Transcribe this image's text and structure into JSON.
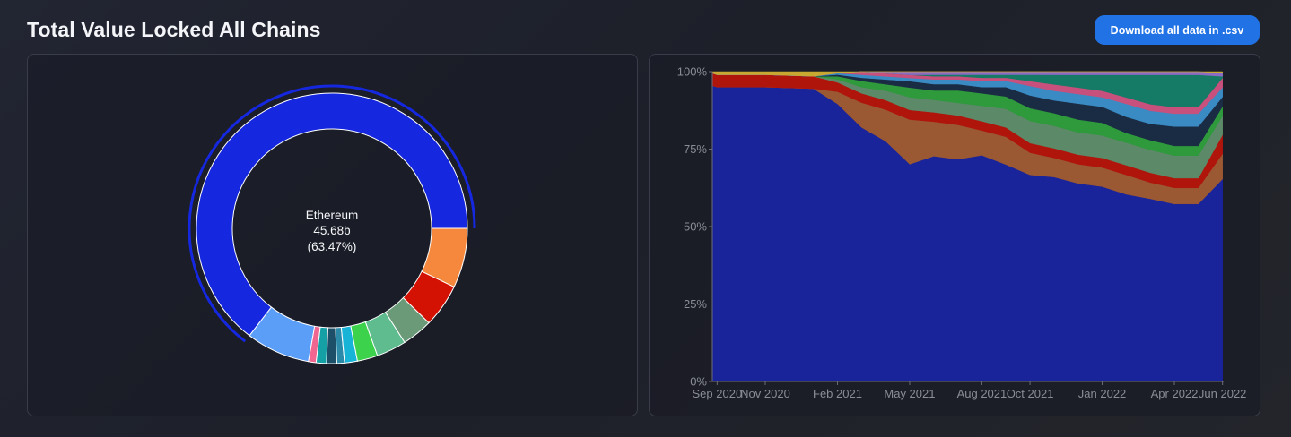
{
  "page": {
    "title": "Total Value Locked All Chains",
    "download_label": "Download all data in .csv"
  },
  "chart_data": [
    {
      "type": "pie",
      "style": "donut",
      "highlighted": {
        "name": "Ethereum",
        "value_label": "45.68b",
        "percent_label": "(63.47%)"
      },
      "slices": [
        {
          "name": "Ethereum",
          "percent": 63.47,
          "color": "#1528e0"
        },
        {
          "name": "",
          "percent": 7.5,
          "color": "#5a9ef8"
        },
        {
          "name": "",
          "percent": 0.9,
          "color": "#f06690"
        },
        {
          "name": "",
          "percent": 1.2,
          "color": "#15a0a6"
        },
        {
          "name": "",
          "percent": 1.2,
          "color": "#1d4f68"
        },
        {
          "name": "",
          "percent": 0.9,
          "color": "#2a8aa8"
        },
        {
          "name": "",
          "percent": 1.5,
          "color": "#18b4d8"
        },
        {
          "name": "",
          "percent": 2.4,
          "color": "#3cd24b"
        },
        {
          "name": "",
          "percent": 3.5,
          "color": "#5fbc8f"
        },
        {
          "name": "",
          "percent": 3.6,
          "color": "#6b9a78"
        },
        {
          "name": "",
          "percent": 5.1,
          "color": "#d31204"
        },
        {
          "name": "",
          "percent": 7.0,
          "color": "#f5883c"
        }
      ]
    },
    {
      "type": "area",
      "stacked": "percent",
      "x_labels": [
        "Sep 2020",
        "Nov 2020",
        "Feb 2021",
        "May 2021",
        "Aug 2021",
        "Oct 2021",
        "Jan 2022",
        "Apr 2022",
        "Jun 2022"
      ],
      "y_ticks": [
        "0%",
        "25%",
        "50%",
        "75%",
        "100%"
      ],
      "ylim": [
        0,
        100
      ],
      "grid": false,
      "series": [
        {
          "color": "#19239a",
          "points": [
            [
              "Aug 2020",
              95.5
            ],
            [
              "Sep 2020",
              95
            ],
            [
              "Nov 2020",
              95
            ],
            [
              "Jan 2021",
              94.5
            ],
            [
              "Feb 2021",
              90
            ],
            [
              "Mar 2021",
              82
            ],
            [
              "Apr 2021",
              76
            ],
            [
              "May 2021",
              68
            ],
            [
              "Jun 2021",
              72
            ],
            [
              "Jul 2021",
              71
            ],
            [
              "Aug 2021",
              73
            ],
            [
              "Sep 2021",
              70
            ],
            [
              "Oct 2021",
              65
            ],
            [
              "Nov 2021",
              64
            ],
            [
              "Dec 2021",
              62
            ],
            [
              "Jan 2022",
              61
            ],
            [
              "Feb 2022",
              58
            ],
            [
              "Mar 2022",
              56
            ],
            [
              "Apr 2022",
              55
            ],
            [
              "May 2022",
              55
            ],
            [
              "Jun 2022",
              64
            ]
          ]
        },
        {
          "color": "#9a5833",
          "points": [
            [
              "Aug 2020",
              0
            ],
            [
              "Sep 2020",
              0
            ],
            [
              "Nov 2020",
              0
            ],
            [
              "Jan 2021",
              0
            ],
            [
              "Feb 2021",
              4
            ],
            [
              "Mar 2021",
              8
            ],
            [
              "Apr 2021",
              10
            ],
            [
              "May 2021",
              14
            ],
            [
              "Jun 2021",
              11
            ],
            [
              "Jul 2021",
              11
            ],
            [
              "Aug 2021",
              8
            ],
            [
              "Sep 2021",
              9
            ],
            [
              "Oct 2021",
              7
            ],
            [
              "Nov 2021",
              6
            ],
            [
              "Dec 2021",
              6
            ],
            [
              "Jan 2022",
              6
            ],
            [
              "Feb 2022",
              6
            ],
            [
              "Mar 2022",
              5
            ],
            [
              "Apr 2022",
              5
            ],
            [
              "May 2022",
              5
            ],
            [
              "Jun 2022",
              8
            ]
          ]
        },
        {
          "color": "#b0150c",
          "points": [
            [
              "Aug 2020",
              4
            ],
            [
              "Sep 2020",
              4
            ],
            [
              "Nov 2020",
              4
            ],
            [
              "Jan 2021",
              4
            ],
            [
              "Feb 2021",
              3
            ],
            [
              "Mar 2021",
              3
            ],
            [
              "Apr 2021",
              3
            ],
            [
              "May 2021",
              3
            ],
            [
              "Jun 2021",
              3
            ],
            [
              "Jul 2021",
              3
            ],
            [
              "Aug 2021",
              3
            ],
            [
              "Sep 2021",
              3
            ],
            [
              "Oct 2021",
              3
            ],
            [
              "Nov 2021",
              3
            ],
            [
              "Dec 2021",
              3
            ],
            [
              "Jan 2022",
              3
            ],
            [
              "Feb 2022",
              3
            ],
            [
              "Mar 2022",
              3
            ],
            [
              "Apr 2022",
              3
            ],
            [
              "May 2022",
              3
            ],
            [
              "Jun 2022",
              6
            ]
          ]
        },
        {
          "color": "#5c8a68",
          "points": [
            [
              "Aug 2020",
              0
            ],
            [
              "Sep 2020",
              0
            ],
            [
              "Nov 2020",
              0
            ],
            [
              "Jan 2021",
              0
            ],
            [
              "Feb 2021",
              1
            ],
            [
              "Mar 2021",
              2
            ],
            [
              "Apr 2021",
              3
            ],
            [
              "May 2021",
              4
            ],
            [
              "Jun 2021",
              4
            ],
            [
              "Jul 2021",
              4
            ],
            [
              "Aug 2021",
              5
            ],
            [
              "Sep 2021",
              6
            ],
            [
              "Oct 2021",
              7
            ],
            [
              "Nov 2021",
              7
            ],
            [
              "Dec 2021",
              7
            ],
            [
              "Jan 2022",
              7
            ],
            [
              "Feb 2022",
              7
            ],
            [
              "Mar 2022",
              7
            ],
            [
              "Apr 2022",
              7
            ],
            [
              "May 2022",
              7
            ],
            [
              "Jun 2022",
              6
            ]
          ]
        },
        {
          "color": "#2e9a3c",
          "points": [
            [
              "Aug 2020",
              0
            ],
            [
              "Sep 2020",
              0
            ],
            [
              "Nov 2020",
              0
            ],
            [
              "Jan 2021",
              0
            ],
            [
              "Feb 2021",
              1
            ],
            [
              "Mar 2021",
              2
            ],
            [
              "Apr 2021",
              2
            ],
            [
              "May 2021",
              3
            ],
            [
              "Jun 2021",
              3
            ],
            [
              "Jul 2021",
              4
            ],
            [
              "Aug 2021",
              4
            ],
            [
              "Sep 2021",
              4
            ],
            [
              "Oct 2021",
              4
            ],
            [
              "Nov 2021",
              4
            ],
            [
              "Dec 2021",
              4
            ],
            [
              "Jan 2022",
              4
            ],
            [
              "Feb 2022",
              3
            ],
            [
              "Mar 2022",
              3
            ],
            [
              "Apr 2022",
              3
            ],
            [
              "May 2022",
              3
            ],
            [
              "Jun 2022",
              3
            ]
          ]
        },
        {
          "color": "#1a2c44",
          "points": [
            [
              "Aug 2020",
              0
            ],
            [
              "Sep 2020",
              0
            ],
            [
              "Nov 2020",
              0
            ],
            [
              "Jan 2021",
              0
            ],
            [
              "Feb 2021",
              0.5
            ],
            [
              "Mar 2021",
              1
            ],
            [
              "Apr 2021",
              1.5
            ],
            [
              "May 2021",
              2
            ],
            [
              "Jun 2021",
              2
            ],
            [
              "Jul 2021",
              2
            ],
            [
              "Aug 2021",
              2
            ],
            [
              "Sep 2021",
              3
            ],
            [
              "Oct 2021",
              4
            ],
            [
              "Nov 2021",
              4
            ],
            [
              "Dec 2021",
              5
            ],
            [
              "Jan 2022",
              5
            ],
            [
              "Feb 2022",
              5
            ],
            [
              "Mar 2022",
              5
            ],
            [
              "Apr 2022",
              6
            ],
            [
              "May 2022",
              6
            ],
            [
              "Jun 2022",
              3
            ]
          ]
        },
        {
          "color": "#3a8ac4",
          "points": [
            [
              "Aug 2020",
              0
            ],
            [
              "Sep 2020",
              0
            ],
            [
              "Nov 2020",
              0
            ],
            [
              "Jan 2021",
              0
            ],
            [
              "Feb 2021",
              0.5
            ],
            [
              "Mar 2021",
              1
            ],
            [
              "Apr 2021",
              1
            ],
            [
              "May 2021",
              1
            ],
            [
              "Jun 2021",
              1.5
            ],
            [
              "Jul 2021",
              1.5
            ],
            [
              "Aug 2021",
              2
            ],
            [
              "Sep 2021",
              2
            ],
            [
              "Oct 2021",
              3
            ],
            [
              "Nov 2021",
              3
            ],
            [
              "Dec 2021",
              3
            ],
            [
              "Jan 2022",
              3
            ],
            [
              "Feb 2022",
              4
            ],
            [
              "Mar 2022",
              4
            ],
            [
              "Apr 2022",
              4
            ],
            [
              "May 2022",
              4
            ],
            [
              "Jun 2022",
              3
            ]
          ]
        },
        {
          "color": "#c8507c",
          "points": [
            [
              "Aug 2020",
              0
            ],
            [
              "Sep 2020",
              0
            ],
            [
              "Nov 2020",
              0
            ],
            [
              "Jan 2021",
              0
            ],
            [
              "Feb 2021",
              0
            ],
            [
              "Mar 2021",
              1
            ],
            [
              "Apr 2021",
              1
            ],
            [
              "May 2021",
              1
            ],
            [
              "Jun 2021",
              1
            ],
            [
              "Jul 2021",
              1
            ],
            [
              "Aug 2021",
              1
            ],
            [
              "Sep 2021",
              1
            ],
            [
              "Oct 2021",
              1.5
            ],
            [
              "Nov 2021",
              2
            ],
            [
              "Dec 2021",
              2
            ],
            [
              "Jan 2022",
              2
            ],
            [
              "Feb 2022",
              2
            ],
            [
              "Mar 2022",
              2
            ],
            [
              "Apr 2022",
              2
            ],
            [
              "May 2022",
              2
            ],
            [
              "Jun 2022",
              3
            ]
          ]
        },
        {
          "color": "#157a66",
          "points": [
            [
              "Aug 2020",
              0
            ],
            [
              "Sep 2020",
              0
            ],
            [
              "Nov 2020",
              0
            ],
            [
              "Jan 2021",
              0
            ],
            [
              "Feb 2021",
              0
            ],
            [
              "Mar 2021",
              0
            ],
            [
              "Apr 2021",
              0
            ],
            [
              "May 2021",
              0
            ],
            [
              "Jun 2021",
              0.5
            ],
            [
              "Jul 2021",
              0.5
            ],
            [
              "Aug 2021",
              1
            ],
            [
              "Sep 2021",
              1
            ],
            [
              "Oct 2021",
              2
            ],
            [
              "Nov 2021",
              3
            ],
            [
              "Dec 2021",
              4
            ],
            [
              "Jan 2022",
              5
            ],
            [
              "Feb 2022",
              7
            ],
            [
              "Mar 2022",
              9
            ],
            [
              "Apr 2022",
              10
            ],
            [
              "May 2022",
              10
            ],
            [
              "Jun 2022",
              0.5
            ]
          ]
        },
        {
          "color": "#8c6bc4",
          "points": [
            [
              "Aug 2020",
              0
            ],
            [
              "Sep 2020",
              0
            ],
            [
              "Nov 2020",
              0
            ],
            [
              "Jan 2021",
              0
            ],
            [
              "Feb 2021",
              0
            ],
            [
              "Mar 2021",
              0
            ],
            [
              "Apr 2021",
              0.5
            ],
            [
              "May 2021",
              1
            ],
            [
              "Jun 2021",
              1
            ],
            [
              "Jul 2021",
              1
            ],
            [
              "Aug 2021",
              1
            ],
            [
              "Sep 2021",
              1
            ],
            [
              "Oct 2021",
              1
            ],
            [
              "Nov 2021",
              1
            ],
            [
              "Dec 2021",
              1
            ],
            [
              "Jan 2022",
              1
            ],
            [
              "Feb 2022",
              1
            ],
            [
              "Mar 2022",
              1
            ],
            [
              "Apr 2022",
              1
            ],
            [
              "May 2022",
              1
            ],
            [
              "Jun 2022",
              1
            ]
          ]
        },
        {
          "color": "#c9a832",
          "points": [
            [
              "Aug 2020",
              0.5
            ],
            [
              "Sep 2020",
              1
            ],
            [
              "Nov 2020",
              1
            ],
            [
              "Jan 2021",
              1.5
            ],
            [
              "Feb 2021",
              0.5
            ],
            [
              "Mar 2021",
              0
            ],
            [
              "Apr 2021",
              0
            ],
            [
              "May 2021",
              0
            ],
            [
              "Jun 2021",
              0
            ],
            [
              "Jul 2021",
              0
            ],
            [
              "Aug 2021",
              0
            ],
            [
              "Sep 2021",
              0
            ],
            [
              "Oct 2021",
              0
            ],
            [
              "Nov 2021",
              0
            ],
            [
              "Dec 2021",
              0
            ],
            [
              "Jan 2022",
              0
            ],
            [
              "Feb 2022",
              0
            ],
            [
              "Mar 2022",
              0
            ],
            [
              "Apr 2022",
              0
            ],
            [
              "May 2022",
              0
            ],
            [
              "Jun 2022",
              0.5
            ]
          ]
        }
      ]
    }
  ]
}
